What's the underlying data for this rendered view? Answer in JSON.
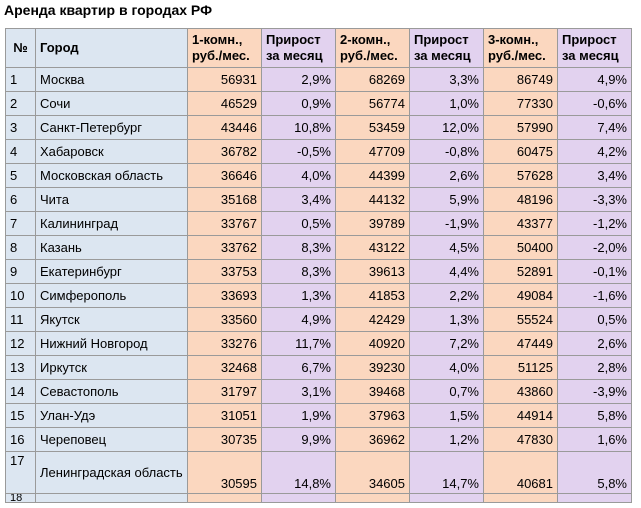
{
  "title": "Аренда квартир в городах РФ",
  "colors": {
    "index_bg": "#dce6f1",
    "city_bg": "#dce6f1",
    "room_bg": "#fbd7bf",
    "growth_bg": "#e2d2ef",
    "border": "#9a9a9a"
  },
  "headers": {
    "num": "№",
    "city": "Город",
    "one_room": "1-комн., руб./мес.",
    "growth1": "Прирост за месяц",
    "two_room": "2-комн., руб./мес.",
    "growth2": "Прирост за месяц",
    "three_room": "3-комн., руб./мес.",
    "growth3": "Прирост за месяц"
  },
  "rows": [
    {
      "num": "1",
      "city": "Москва",
      "r1": "56931",
      "g1": "2,9%",
      "r2": "68269",
      "g2": "3,3%",
      "r3": "86749",
      "g3": "4,9%"
    },
    {
      "num": "2",
      "city": "Сочи",
      "r1": "46529",
      "g1": "0,9%",
      "r2": "56774",
      "g2": "1,0%",
      "r3": "77330",
      "g3": "-0,6%"
    },
    {
      "num": "3",
      "city": "Санкт-Петербург",
      "r1": "43446",
      "g1": "10,8%",
      "r2": "53459",
      "g2": "12,0%",
      "r3": "57990",
      "g3": "7,4%"
    },
    {
      "num": "4",
      "city": "Хабаровск",
      "r1": "36782",
      "g1": "-0,5%",
      "r2": "47709",
      "g2": "-0,8%",
      "r3": "60475",
      "g3": "4,2%"
    },
    {
      "num": "5",
      "city": "Московская область",
      "r1": "36646",
      "g1": "4,0%",
      "r2": "44399",
      "g2": "2,6%",
      "r3": "57628",
      "g3": "3,4%"
    },
    {
      "num": "6",
      "city": "Чита",
      "r1": "35168",
      "g1": "3,4%",
      "r2": "44132",
      "g2": "5,9%",
      "r3": "48196",
      "g3": "-3,3%"
    },
    {
      "num": "7",
      "city": "Калининград",
      "r1": "33767",
      "g1": "0,5%",
      "r2": "39789",
      "g2": "-1,9%",
      "r3": "43377",
      "g3": "-1,2%"
    },
    {
      "num": "8",
      "city": "Казань",
      "r1": "33762",
      "g1": "8,3%",
      "r2": "43122",
      "g2": "4,5%",
      "r3": "50400",
      "g3": "-2,0%"
    },
    {
      "num": "9",
      "city": "Екатеринбург",
      "r1": "33753",
      "g1": "8,3%",
      "r2": "39613",
      "g2": "4,4%",
      "r3": "52891",
      "g3": "-0,1%"
    },
    {
      "num": "10",
      "city": "Симферополь",
      "r1": "33693",
      "g1": "1,3%",
      "r2": "41853",
      "g2": "2,2%",
      "r3": "49084",
      "g3": "-1,6%"
    },
    {
      "num": "11",
      "city": "Якутск",
      "r1": "33560",
      "g1": "4,9%",
      "r2": "42429",
      "g2": "1,3%",
      "r3": "55524",
      "g3": "0,5%"
    },
    {
      "num": "12",
      "city": "Нижний Новгород",
      "r1": "33276",
      "g1": "11,7%",
      "r2": "40920",
      "g2": "7,2%",
      "r3": "47449",
      "g3": "2,6%"
    },
    {
      "num": "13",
      "city": "Иркутск",
      "r1": "32468",
      "g1": "6,7%",
      "r2": "39230",
      "g2": "4,0%",
      "r3": "51125",
      "g3": "2,8%"
    },
    {
      "num": "14",
      "city": "Севастополь",
      "r1": "31797",
      "g1": "3,1%",
      "r2": "39468",
      "g2": "0,7%",
      "r3": "43860",
      "g3": "-3,9%"
    },
    {
      "num": "15",
      "city": "Улан-Удэ",
      "r1": "31051",
      "g1": "1,9%",
      "r2": "37963",
      "g2": "1,5%",
      "r3": "44914",
      "g3": "5,8%"
    },
    {
      "num": "16",
      "city": "Череповец",
      "r1": "30735",
      "g1": "9,9%",
      "r2": "36962",
      "g2": "1,2%",
      "r3": "47830",
      "g3": "1,6%"
    },
    {
      "num": "17",
      "city": "Ленинградская область",
      "r1": "30595",
      "g1": "14,8%",
      "r2": "34605",
      "g2": "14,7%",
      "r3": "40681",
      "g3": "5,8%"
    },
    {
      "num": "18",
      "city": "",
      "r1": "",
      "g1": "",
      "r2": "",
      "g2": "",
      "r3": "",
      "g3": ""
    }
  ]
}
